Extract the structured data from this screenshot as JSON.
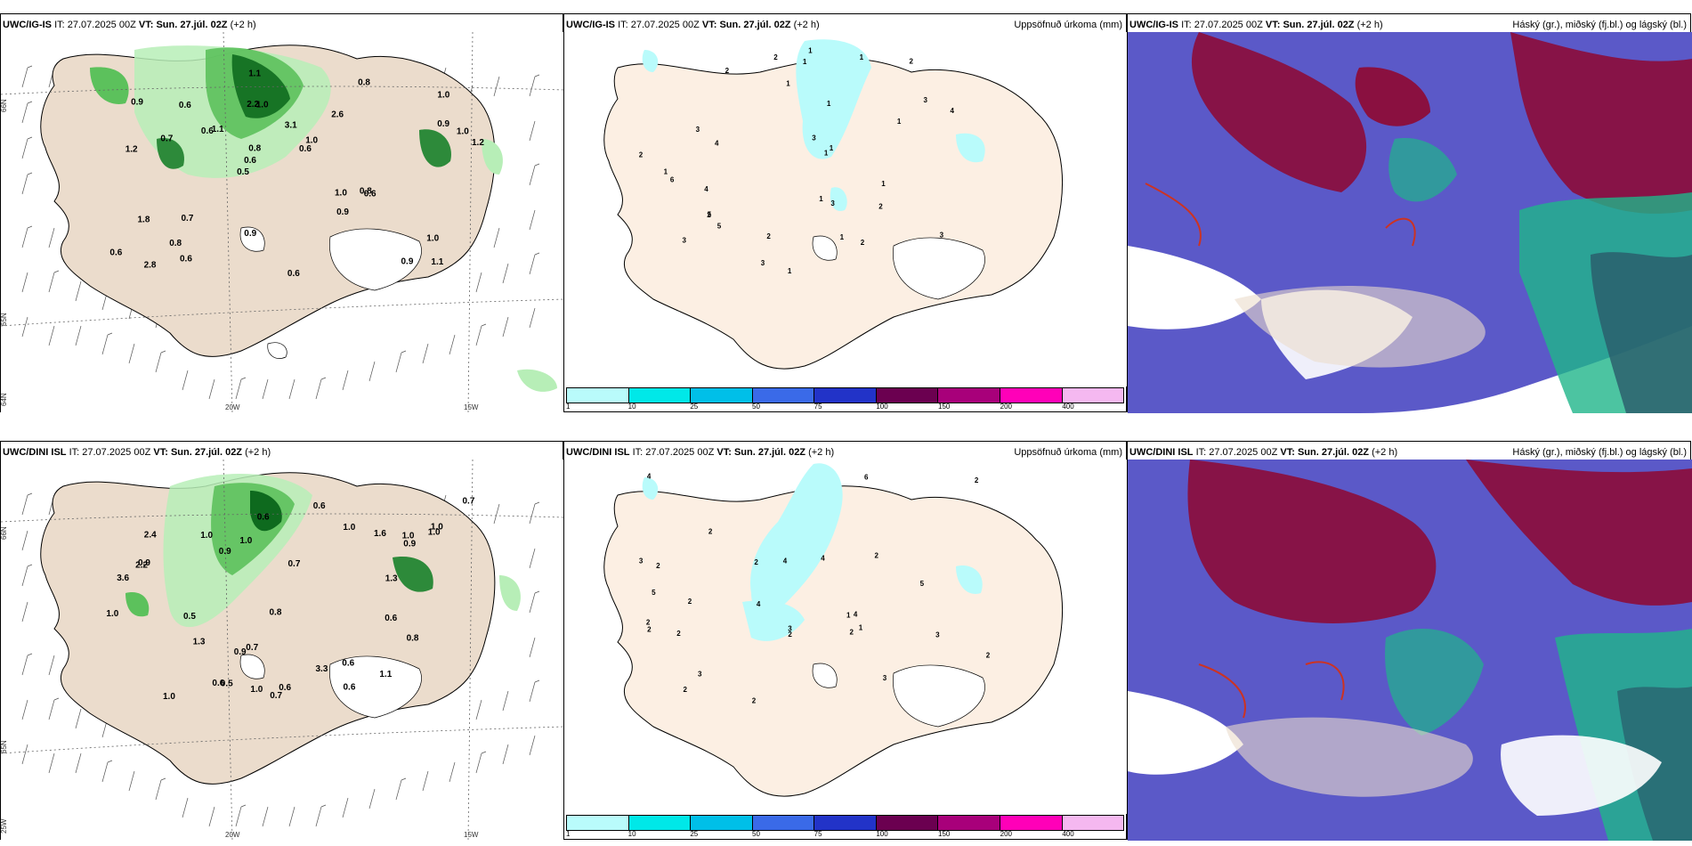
{
  "rows": [
    {
      "model": "UWC/IG-IS",
      "it_label": "IT:",
      "it": "27.07.2025 00Z",
      "vt_label": "VT: Sun. 27.júl. 02Z",
      "lead": "(+2 h)",
      "wind_values": [
        "1.1",
        "1.2",
        "1.0",
        "0.5",
        "2.6",
        "2.8",
        "2.2",
        "3.1",
        "1.8",
        "1.1",
        "0.6",
        "0.8",
        "1.0",
        "1.0",
        "0.6",
        "0.9",
        "1.1",
        "1.2",
        "1.0",
        "0.9",
        "0.6",
        "0.9",
        "0.8",
        "0.6",
        "0.8",
        "0.7",
        "0.9",
        "1.0",
        "0.8",
        "0.6",
        "0.6",
        "0.7",
        "0.9",
        "0.6",
        "1.0",
        "0.6"
      ],
      "precip_values": [
        "3",
        "2",
        "2",
        "3",
        "3",
        "4",
        "4",
        "5",
        "4",
        "1",
        "1",
        "1",
        "2",
        "1",
        "1",
        "2",
        "3",
        "2",
        "2",
        "3",
        "2",
        "1",
        "1",
        "1",
        "3",
        "2",
        "6",
        "1",
        "1",
        "1",
        "3",
        "5",
        "1",
        "1"
      ]
    },
    {
      "model": "UWC/DINI ISL",
      "it_label": "IT:",
      "it": "27.07.2025 00Z",
      "vt_label": "VT: Sun. 27.júl. 02Z",
      "lead": "(+2 h)",
      "wind_values": [
        "0.9",
        "0.7",
        "0.6",
        "1.0",
        "0.6",
        "0.6",
        "0.7",
        "1.0",
        "3.3",
        "2.2",
        "2.4",
        "1.6",
        "1.0",
        "0.8",
        "0.9",
        "0.6",
        "0.5",
        "1.0",
        "1.1",
        "0.6",
        "0.9",
        "0.7",
        "1.0",
        "0.8",
        "1.3",
        "0.6",
        "1.0",
        "0.9",
        "0.5",
        "1.0",
        "3.6",
        "1.0",
        "0.7",
        "1.3",
        "1.0",
        "0.6"
      ],
      "precip_values": [
        "1",
        "2",
        "2",
        "2",
        "4",
        "4",
        "5",
        "4",
        "2",
        "4",
        "3",
        "3",
        "2",
        "3",
        "3",
        "2",
        "2",
        "2",
        "2",
        "2",
        "2",
        "1",
        "2",
        "2",
        "4",
        "6",
        "3",
        "5",
        "2"
      ]
    }
  ],
  "precip_title": "Uppsöfnuð úrkoma (mm)",
  "cloud_title": "Háský (gr.), miðský (fj.bl.) og lágský (bl.)",
  "colorbar": {
    "ticks": [
      "1",
      "10",
      "25",
      "50",
      "75",
      "100",
      "150",
      "200",
      "400"
    ],
    "colors": [
      "#b9fbfb",
      "#00e8e8",
      "#00bfe8",
      "#3a6ae8",
      "#2233c8",
      "#6b0050",
      "#a8007a",
      "#ff00b8",
      "#f5b8f0"
    ]
  },
  "axes": {
    "lat_labels": [
      "66N",
      "65N",
      "64N"
    ],
    "lon_labels": [
      "25W",
      "20W",
      "15W"
    ]
  },
  "colors": {
    "land": "#ebdccc",
    "precip_land": "#fcefe3",
    "green_light": "#b7eeb7",
    "green_mid": "#5cc15c",
    "green_dark": "#0e6a1e",
    "cloud_high": "#8a1040",
    "cloud_mid": "#5b59c8",
    "cloud_low": "#1fb58a"
  }
}
